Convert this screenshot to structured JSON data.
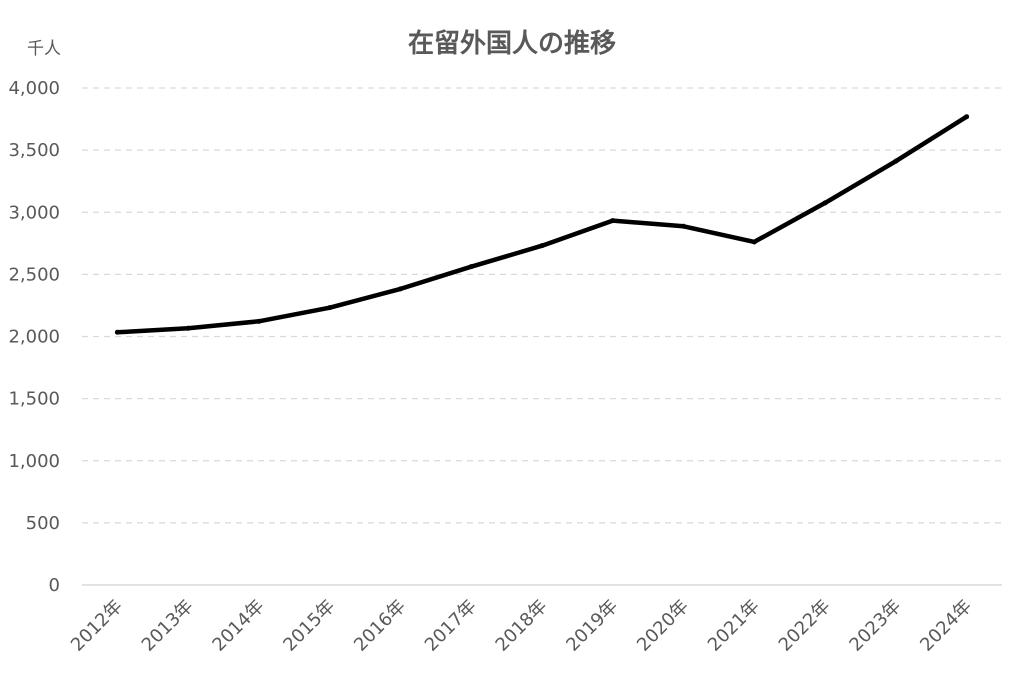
{
  "chart_data": {
    "type": "line",
    "title": "在留外国人の推移",
    "unit_label": "千人",
    "xlabel": "",
    "ylabel": "",
    "categories": [
      "2012年",
      "2013年",
      "2014年",
      "2015年",
      "2016年",
      "2017年",
      "2018年",
      "2019年",
      "2020年",
      "2021年",
      "2022年",
      "2023年",
      "2024年"
    ],
    "series": [
      {
        "values": [
          2034,
          2066,
          2122,
          2232,
          2383,
          2562,
          2731,
          2933,
          2887,
          2761,
          3075,
          3411,
          3769
        ]
      }
    ],
    "ylim": [
      0,
      4000
    ],
    "y_ticks": [
      0,
      500,
      1000,
      1500,
      2000,
      2500,
      3000,
      3500,
      4000
    ],
    "y_tick_labels": [
      "0",
      "500",
      "1,000",
      "1,500",
      "2,000",
      "2,500",
      "3,000",
      "3,500",
      "4,000"
    ],
    "grid": true,
    "legend": "none",
    "colors": {
      "line": "#000000",
      "grid": "#d9d9d9",
      "text": "#595959"
    }
  }
}
